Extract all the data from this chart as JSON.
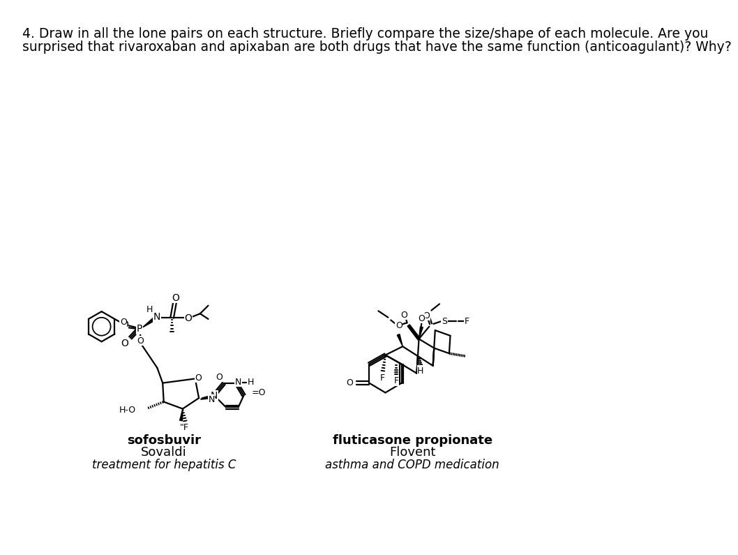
{
  "title_line1": "4. Draw in all the lone pairs on each structure. Briefly compare the size/shape of each molecule. Are you",
  "title_line2": "surprised that rivaroxaban and apixaban are both drugs that have the same function (anticoagulant)? Why?",
  "label1_bold": "sofosbuvir",
  "label1_normal": "Sovaldi",
  "label1_italic": "treatment for hepatitis C",
  "label2_bold": "fluticasone propionate",
  "label2_normal": "Flovent",
  "label2_italic": "asthma and COPD medication",
  "bg_color": "#ffffff",
  "text_color": "#000000",
  "title_fontsize": 13.5,
  "label_fontsize": 13,
  "fig_width": 10.8,
  "fig_height": 10.07
}
